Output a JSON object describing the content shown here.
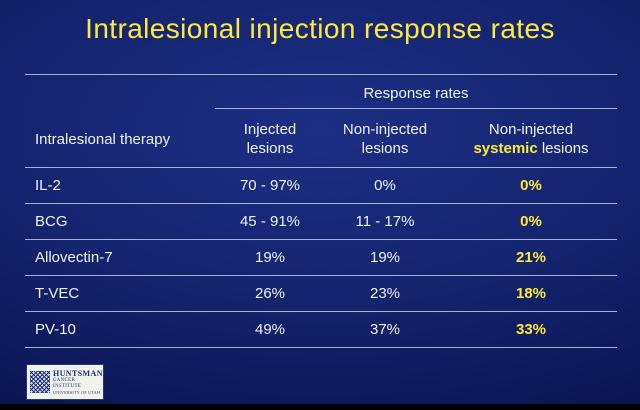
{
  "slide": {
    "title": "Intralesional injection response rates",
    "table": {
      "group_header": "Response rates",
      "therapy_header": "Intralesional therapy",
      "columns": {
        "injected": {
          "line1": "Injected",
          "line2": "lesions"
        },
        "non_injected": {
          "line1": "Non-injected",
          "line2": "lesions"
        },
        "systemic": {
          "line1": "Non-injected",
          "line2_highlight": "systemic",
          "line2_rest": "lesions"
        }
      }
    },
    "logo": {
      "line1": "HUNTSMAN",
      "line2": "CANCER INSTITUTE",
      "line3": "UNIVERSITY OF UTAH"
    },
    "colors": {
      "accent_yellow": "#ffe93d",
      "background_blue": "#14236d",
      "text_white": "#eef1f8",
      "rule_gray": "#a8b2d0"
    }
  },
  "chart_data": {
    "type": "table",
    "title": "Intralesional injection response rates",
    "group_header": "Response rates",
    "columns": [
      "Intralesional therapy",
      "Injected lesions",
      "Non-injected lesions",
      "Non-injected systemic lesions"
    ],
    "rows": [
      [
        "IL-2",
        "70 - 97%",
        "0%",
        "0%"
      ],
      [
        "BCG",
        "45 - 91%",
        "11 - 17%",
        "0%"
      ],
      [
        "Allovectin-7",
        "19%",
        "19%",
        "21%"
      ],
      [
        "T-VEC",
        "26%",
        "23%",
        "18%"
      ],
      [
        "PV-10",
        "49%",
        "37%",
        "33%"
      ]
    ],
    "highlight_column": "Non-injected systemic lesions",
    "highlight_color": "#ffe93d"
  }
}
